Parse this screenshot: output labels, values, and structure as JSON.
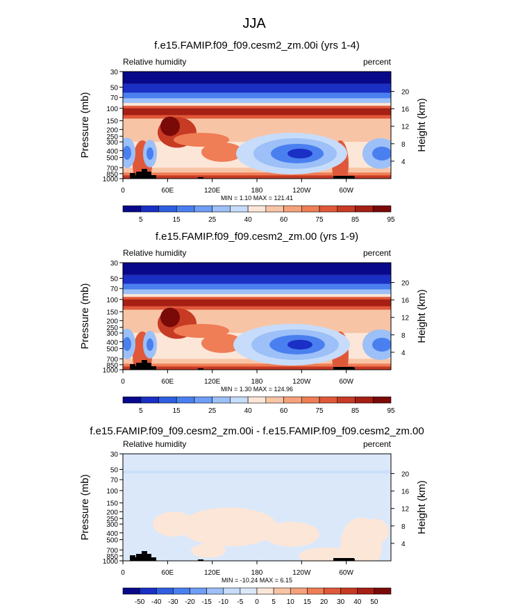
{
  "page_title": "JJA",
  "chart_data": [
    {
      "type": "heatmap",
      "title": "f.e15.FAMIP.f09_f09.cesm2_zm.00i (yrs 1-4)",
      "left_label": "Relative humidity",
      "right_label": "percent",
      "ylabel": "Pressure (mb)",
      "y2label": "Height (km)",
      "yticks": [
        "30",
        "50",
        "70",
        "100",
        "150",
        "200",
        "250",
        "300",
        "400",
        "500",
        "700",
        "850",
        "1000"
      ],
      "y2ticks": [
        "20",
        "16",
        "12",
        "8",
        "4"
      ],
      "xticks": [
        "0",
        "60E",
        "120E",
        "180",
        "120W",
        "60W"
      ],
      "stats": "MIN =   1.10  MAX = 121.41",
      "min": 1.1,
      "max": 121.41,
      "colorbar": [
        "5",
        "15",
        "25",
        "40",
        "60",
        "75",
        "85",
        "95"
      ],
      "colorbar_kind": "rh"
    },
    {
      "type": "heatmap",
      "title": "f.e15.FAMIP.f09_f09.cesm2_zm.00 (yrs 1-9)",
      "left_label": "Relative humidity",
      "right_label": "percent",
      "ylabel": "Pressure (mb)",
      "y2label": "Height (km)",
      "yticks": [
        "30",
        "50",
        "70",
        "100",
        "150",
        "200",
        "250",
        "300",
        "400",
        "500",
        "700",
        "850",
        "1000"
      ],
      "y2ticks": [
        "20",
        "16",
        "12",
        "8",
        "4"
      ],
      "xticks": [
        "0",
        "60E",
        "120E",
        "180",
        "120W",
        "60W"
      ],
      "stats": "MIN =   1.30  MAX = 124.96",
      "min": 1.3,
      "max": 124.96,
      "colorbar": [
        "5",
        "15",
        "25",
        "40",
        "60",
        "75",
        "85",
        "95"
      ],
      "colorbar_kind": "rh"
    },
    {
      "type": "heatmap",
      "title": "f.e15.FAMIP.f09_f09.cesm2_zm.00i - f.e15.FAMIP.f09_f09.cesm2_zm.00",
      "left_label": "Relative humidity",
      "right_label": "percent",
      "ylabel": "Pressure (mb)",
      "y2label": "Height (km)",
      "yticks": [
        "30",
        "50",
        "70",
        "100",
        "150",
        "200",
        "250",
        "300",
        "400",
        "500",
        "700",
        "850",
        "1000"
      ],
      "y2ticks": [
        "20",
        "16",
        "12",
        "8",
        "4"
      ],
      "xticks": [
        "0",
        "60E",
        "120E",
        "180",
        "120W",
        "60W"
      ],
      "stats": "MIN = -10.24  MAX =   6.15",
      "min": -10.24,
      "max": 6.15,
      "colorbar": [
        "-50",
        "-40",
        "-30",
        "-20",
        "-15",
        "-10",
        "-5",
        "0",
        "5",
        "10",
        "15",
        "20",
        "30",
        "40",
        "50"
      ],
      "colorbar_kind": "diff"
    }
  ],
  "colors": {
    "rh": [
      "#08088a",
      "#1a2fc4",
      "#2f5fe0",
      "#4a7ff0",
      "#6e9ef5",
      "#9cc0f7",
      "#c6dcfa",
      "#fce6d8",
      "#f8c4a6",
      "#f5a27c",
      "#ef7d55",
      "#e0583a",
      "#c73a24",
      "#a51f14",
      "#7a0a08"
    ],
    "diff": [
      "#08088a",
      "#1a2fc4",
      "#2f5fe0",
      "#4a7ff0",
      "#6e9ef5",
      "#9cc0f7",
      "#c6dcfa",
      "#dbe8fa",
      "#fce6d8",
      "#f8c4a6",
      "#f5a27c",
      "#ef7d55",
      "#e0583a",
      "#c73a24",
      "#a51f14",
      "#7a0a08"
    ]
  }
}
